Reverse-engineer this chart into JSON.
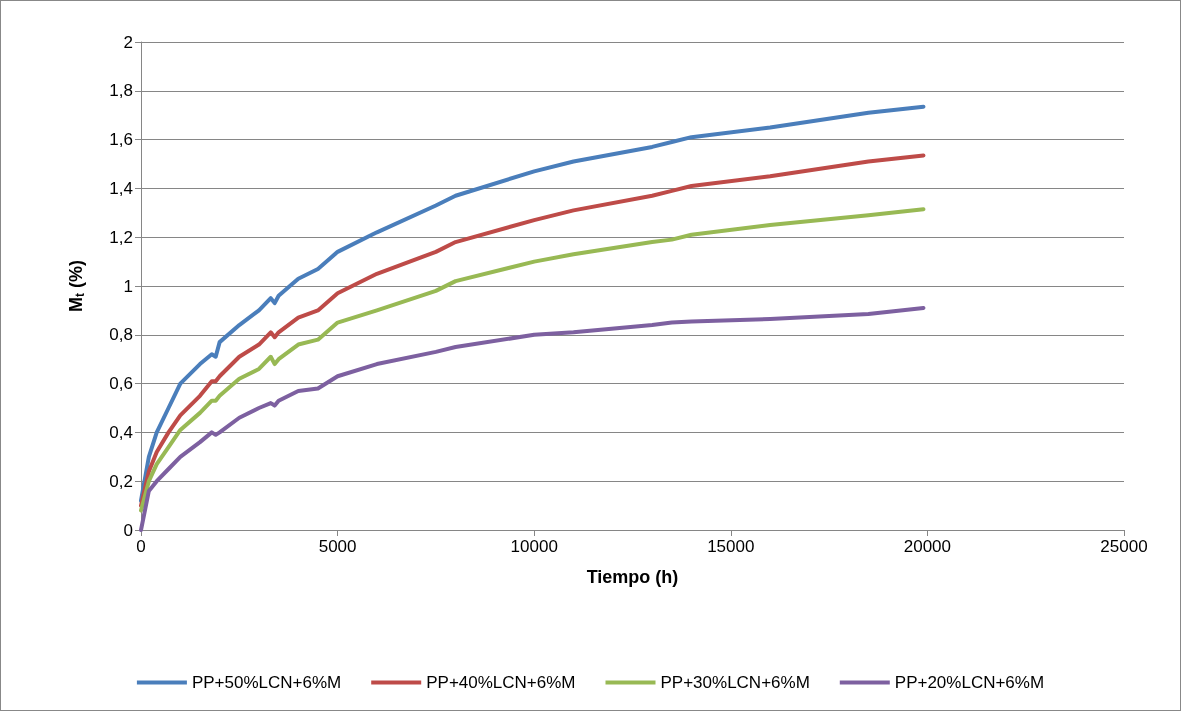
{
  "chart_data": {
    "type": "line",
    "xlabel": "Tiempo (h)",
    "ylabel": "M$_{t}$ (%)",
    "x": [
      0,
      200,
      400,
      700,
      1000,
      1500,
      1800,
      1900,
      2000,
      2500,
      3000,
      3300,
      3400,
      3500,
      4000,
      4500,
      5000,
      6000,
      7500,
      8000,
      10000,
      11000,
      13000,
      13500,
      14000,
      16000,
      18500,
      19900
    ],
    "series": [
      {
        "name": "PP+50%LCN+6%M",
        "color": "#4a7ebb",
        "values": [
          0.12,
          0.3,
          0.4,
          0.5,
          0.6,
          0.68,
          0.72,
          0.71,
          0.77,
          0.84,
          0.9,
          0.95,
          0.93,
          0.96,
          1.03,
          1.07,
          1.14,
          1.22,
          1.33,
          1.37,
          1.47,
          1.51,
          1.57,
          1.59,
          1.61,
          1.65,
          1.71,
          1.735
        ]
      },
      {
        "name": "PP+40%LCN+6%M",
        "color": "#be4b48",
        "values": [
          0.1,
          0.24,
          0.32,
          0.4,
          0.47,
          0.55,
          0.61,
          0.61,
          0.63,
          0.71,
          0.76,
          0.81,
          0.79,
          0.81,
          0.87,
          0.9,
          0.97,
          1.05,
          1.14,
          1.18,
          1.27,
          1.31,
          1.37,
          1.39,
          1.41,
          1.45,
          1.51,
          1.535
        ]
      },
      {
        "name": "PP+30%LCN+6%M",
        "color": "#98b954",
        "values": [
          0.08,
          0.2,
          0.27,
          0.34,
          0.41,
          0.48,
          0.53,
          0.53,
          0.55,
          0.62,
          0.66,
          0.71,
          0.68,
          0.7,
          0.76,
          0.78,
          0.85,
          0.9,
          0.98,
          1.02,
          1.1,
          1.13,
          1.18,
          1.19,
          1.21,
          1.25,
          1.29,
          1.315
        ]
      },
      {
        "name": "PP+20%LCN+6%M",
        "color": "#7d60a0",
        "values": [
          0.0,
          0.16,
          0.2,
          0.25,
          0.3,
          0.36,
          0.4,
          0.39,
          0.4,
          0.46,
          0.5,
          0.52,
          0.51,
          0.53,
          0.57,
          0.58,
          0.63,
          0.68,
          0.73,
          0.75,
          0.8,
          0.81,
          0.84,
          0.85,
          0.855,
          0.865,
          0.885,
          0.91
        ]
      }
    ],
    "xlim": [
      0,
      25000
    ],
    "xticks": [
      0,
      5000,
      10000,
      15000,
      20000,
      25000
    ],
    "ylim": [
      0,
      2
    ],
    "yticks": [
      0,
      {
        "value": 0.2,
        "label": "0,2"
      },
      {
        "value": 0.4,
        "label": "0,4"
      },
      {
        "value": 0.6,
        "label": "0,6"
      },
      {
        "value": 0.8,
        "label": "0,8"
      },
      1,
      {
        "value": 1.2,
        "label": "1,2"
      },
      {
        "value": 1.4,
        "label": "1,4"
      },
      {
        "value": 1.6,
        "label": "1,6"
      },
      {
        "value": 1.8,
        "label": "1,8"
      },
      2
    ],
    "grid": "y",
    "legend": "bottom",
    "marker": "none",
    "line_style": "solid"
  }
}
